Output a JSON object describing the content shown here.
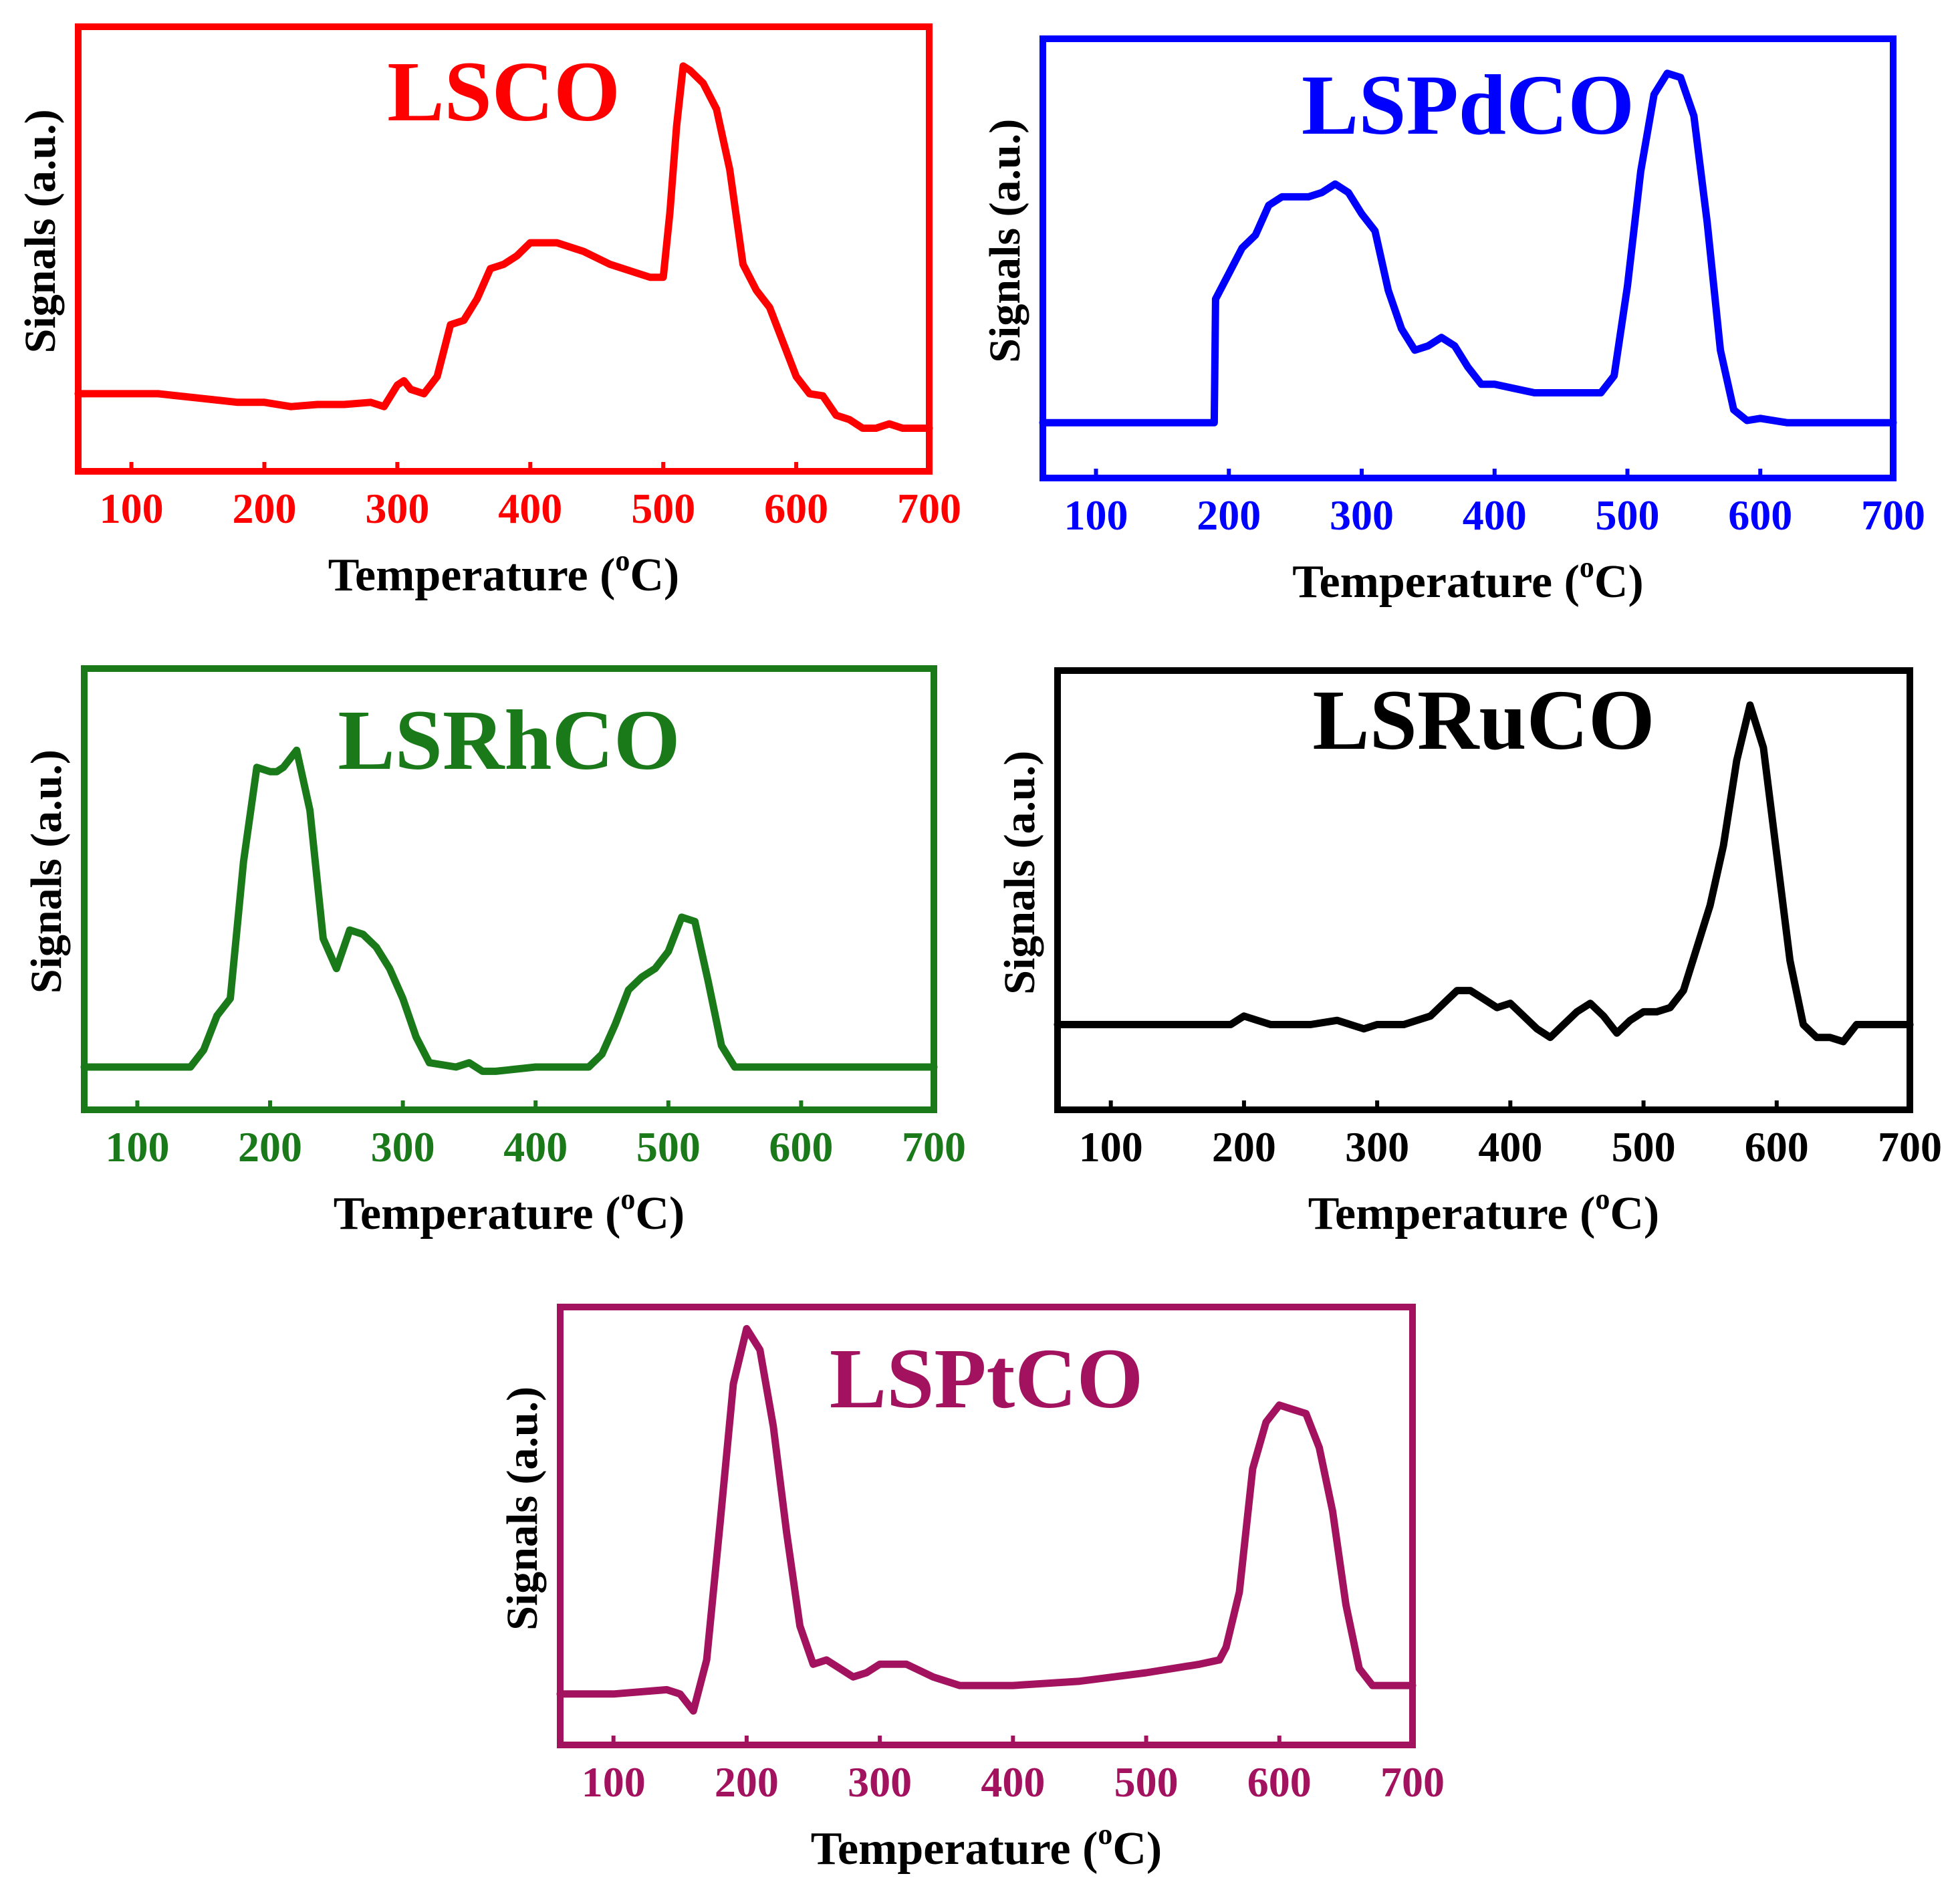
{
  "figure": {
    "xlabel": "Temperature (°C)",
    "ylabel": "Signals (a.u.)"
  },
  "chart_data": [
    {
      "type": "line",
      "title": "LSCO",
      "color": "#ff0000",
      "xlabel": "Temperature (°C)",
      "ylabel": "Signals (a.u.)",
      "xlim": [
        60,
        700
      ],
      "ylim": [
        0,
        1
      ],
      "xticks": [
        100,
        200,
        300,
        400,
        500,
        600,
        700
      ],
      "x": [
        60,
        100,
        120,
        150,
        180,
        200,
        220,
        240,
        260,
        280,
        290,
        300,
        305,
        310,
        320,
        330,
        340,
        350,
        360,
        370,
        380,
        390,
        400,
        420,
        440,
        460,
        480,
        490,
        500,
        505,
        510,
        515,
        520,
        530,
        540,
        550,
        560,
        570,
        580,
        590,
        600,
        610,
        620,
        630,
        640,
        650,
        660,
        670,
        680,
        700
      ],
      "y": [
        0.18,
        0.18,
        0.18,
        0.17,
        0.16,
        0.16,
        0.15,
        0.155,
        0.155,
        0.16,
        0.15,
        0.2,
        0.21,
        0.19,
        0.18,
        0.22,
        0.34,
        0.35,
        0.4,
        0.47,
        0.48,
        0.5,
        0.53,
        0.53,
        0.51,
        0.48,
        0.46,
        0.45,
        0.45,
        0.6,
        0.8,
        0.94,
        0.93,
        0.9,
        0.84,
        0.7,
        0.48,
        0.42,
        0.38,
        0.3,
        0.22,
        0.18,
        0.175,
        0.13,
        0.12,
        0.1,
        0.1,
        0.11,
        0.1,
        0.1
      ]
    },
    {
      "type": "line",
      "title": "LSPdCO",
      "color": "#0000ff",
      "xlabel": "Temperature (°C)",
      "ylabel": "Signals (a.u.)",
      "xlim": [
        60,
        700
      ],
      "ylim": [
        0,
        1
      ],
      "xticks": [
        100,
        200,
        300,
        400,
        500,
        600,
        700
      ],
      "x": [
        60,
        100,
        150,
        189,
        190,
        200,
        210,
        220,
        230,
        240,
        250,
        260,
        270,
        280,
        290,
        300,
        310,
        320,
        330,
        340,
        350,
        360,
        370,
        380,
        390,
        400,
        430,
        460,
        480,
        490,
        500,
        510,
        520,
        530,
        540,
        550,
        560,
        570,
        580,
        590,
        600,
        620,
        650,
        700
      ],
      "y": [
        0.13,
        0.13,
        0.13,
        0.13,
        0.42,
        0.48,
        0.54,
        0.57,
        0.64,
        0.66,
        0.66,
        0.66,
        0.67,
        0.69,
        0.67,
        0.62,
        0.58,
        0.44,
        0.35,
        0.3,
        0.31,
        0.33,
        0.31,
        0.26,
        0.22,
        0.22,
        0.2,
        0.2,
        0.2,
        0.24,
        0.45,
        0.72,
        0.9,
        0.95,
        0.94,
        0.85,
        0.6,
        0.3,
        0.16,
        0.135,
        0.14,
        0.13,
        0.13,
        0.13
      ]
    },
    {
      "type": "line",
      "title": "LSRhCO",
      "color": "#1a7a1a",
      "xlabel": "Temperature (°C)",
      "ylabel": "Signals (a.u.)",
      "xlim": [
        60,
        700
      ],
      "ylim": [
        0,
        1
      ],
      "xticks": [
        100,
        200,
        300,
        400,
        500,
        600,
        700
      ],
      "x": [
        60,
        100,
        140,
        150,
        160,
        170,
        180,
        190,
        200,
        205,
        210,
        220,
        230,
        240,
        250,
        260,
        270,
        280,
        290,
        300,
        310,
        320,
        340,
        350,
        360,
        370,
        400,
        440,
        450,
        460,
        470,
        480,
        490,
        500,
        510,
        520,
        530,
        540,
        550,
        560,
        600,
        650,
        700
      ],
      "y": [
        0.1,
        0.1,
        0.1,
        0.14,
        0.22,
        0.26,
        0.58,
        0.8,
        0.79,
        0.79,
        0.8,
        0.84,
        0.7,
        0.4,
        0.33,
        0.42,
        0.41,
        0.38,
        0.33,
        0.26,
        0.17,
        0.11,
        0.1,
        0.11,
        0.09,
        0.09,
        0.1,
        0.1,
        0.13,
        0.2,
        0.28,
        0.31,
        0.33,
        0.37,
        0.45,
        0.44,
        0.3,
        0.15,
        0.1,
        0.1,
        0.1,
        0.1,
        0.1
      ]
    },
    {
      "type": "line",
      "title": "LSRuCO",
      "color": "#000000",
      "xlabel": "Temperature (°C)",
      "ylabel": "Signals (a.u.)",
      "xlim": [
        60,
        700
      ],
      "ylim": [
        0,
        1
      ],
      "xticks": [
        100,
        200,
        300,
        400,
        500,
        600,
        700
      ],
      "x": [
        60,
        100,
        150,
        190,
        200,
        210,
        220,
        250,
        270,
        290,
        300,
        320,
        340,
        350,
        360,
        370,
        380,
        390,
        400,
        410,
        420,
        430,
        440,
        450,
        460,
        470,
        480,
        490,
        500,
        510,
        520,
        530,
        540,
        550,
        560,
        570,
        580,
        590,
        600,
        610,
        620,
        630,
        640,
        650,
        660,
        700
      ],
      "y": [
        0.2,
        0.2,
        0.2,
        0.2,
        0.22,
        0.21,
        0.2,
        0.2,
        0.21,
        0.19,
        0.2,
        0.2,
        0.22,
        0.25,
        0.28,
        0.28,
        0.26,
        0.24,
        0.25,
        0.22,
        0.19,
        0.17,
        0.2,
        0.23,
        0.25,
        0.22,
        0.18,
        0.21,
        0.23,
        0.23,
        0.24,
        0.28,
        0.38,
        0.48,
        0.62,
        0.82,
        0.95,
        0.85,
        0.6,
        0.35,
        0.2,
        0.17,
        0.17,
        0.16,
        0.2,
        0.2
      ]
    },
    {
      "type": "line",
      "title": "LSPtCO",
      "color": "#a3125e",
      "xlabel": "Temperature (°C)",
      "ylabel": "Signals (a.u.)",
      "xlim": [
        60,
        700
      ],
      "ylim": [
        0,
        1
      ],
      "xticks": [
        100,
        200,
        300,
        400,
        500,
        600,
        700
      ],
      "x": [
        60,
        100,
        140,
        150,
        160,
        170,
        180,
        190,
        200,
        210,
        220,
        230,
        240,
        250,
        260,
        270,
        280,
        290,
        300,
        320,
        340,
        360,
        380,
        400,
        450,
        500,
        540,
        555,
        560,
        570,
        580,
        590,
        600,
        610,
        620,
        630,
        640,
        650,
        660,
        670,
        680,
        700
      ],
      "y": [
        0.12,
        0.12,
        0.13,
        0.12,
        0.08,
        0.2,
        0.52,
        0.85,
        0.98,
        0.93,
        0.75,
        0.5,
        0.28,
        0.19,
        0.2,
        0.18,
        0.16,
        0.17,
        0.19,
        0.19,
        0.16,
        0.14,
        0.14,
        0.14,
        0.15,
        0.17,
        0.19,
        0.2,
        0.23,
        0.36,
        0.65,
        0.76,
        0.8,
        0.79,
        0.78,
        0.7,
        0.55,
        0.33,
        0.18,
        0.14,
        0.14,
        0.14
      ]
    }
  ]
}
